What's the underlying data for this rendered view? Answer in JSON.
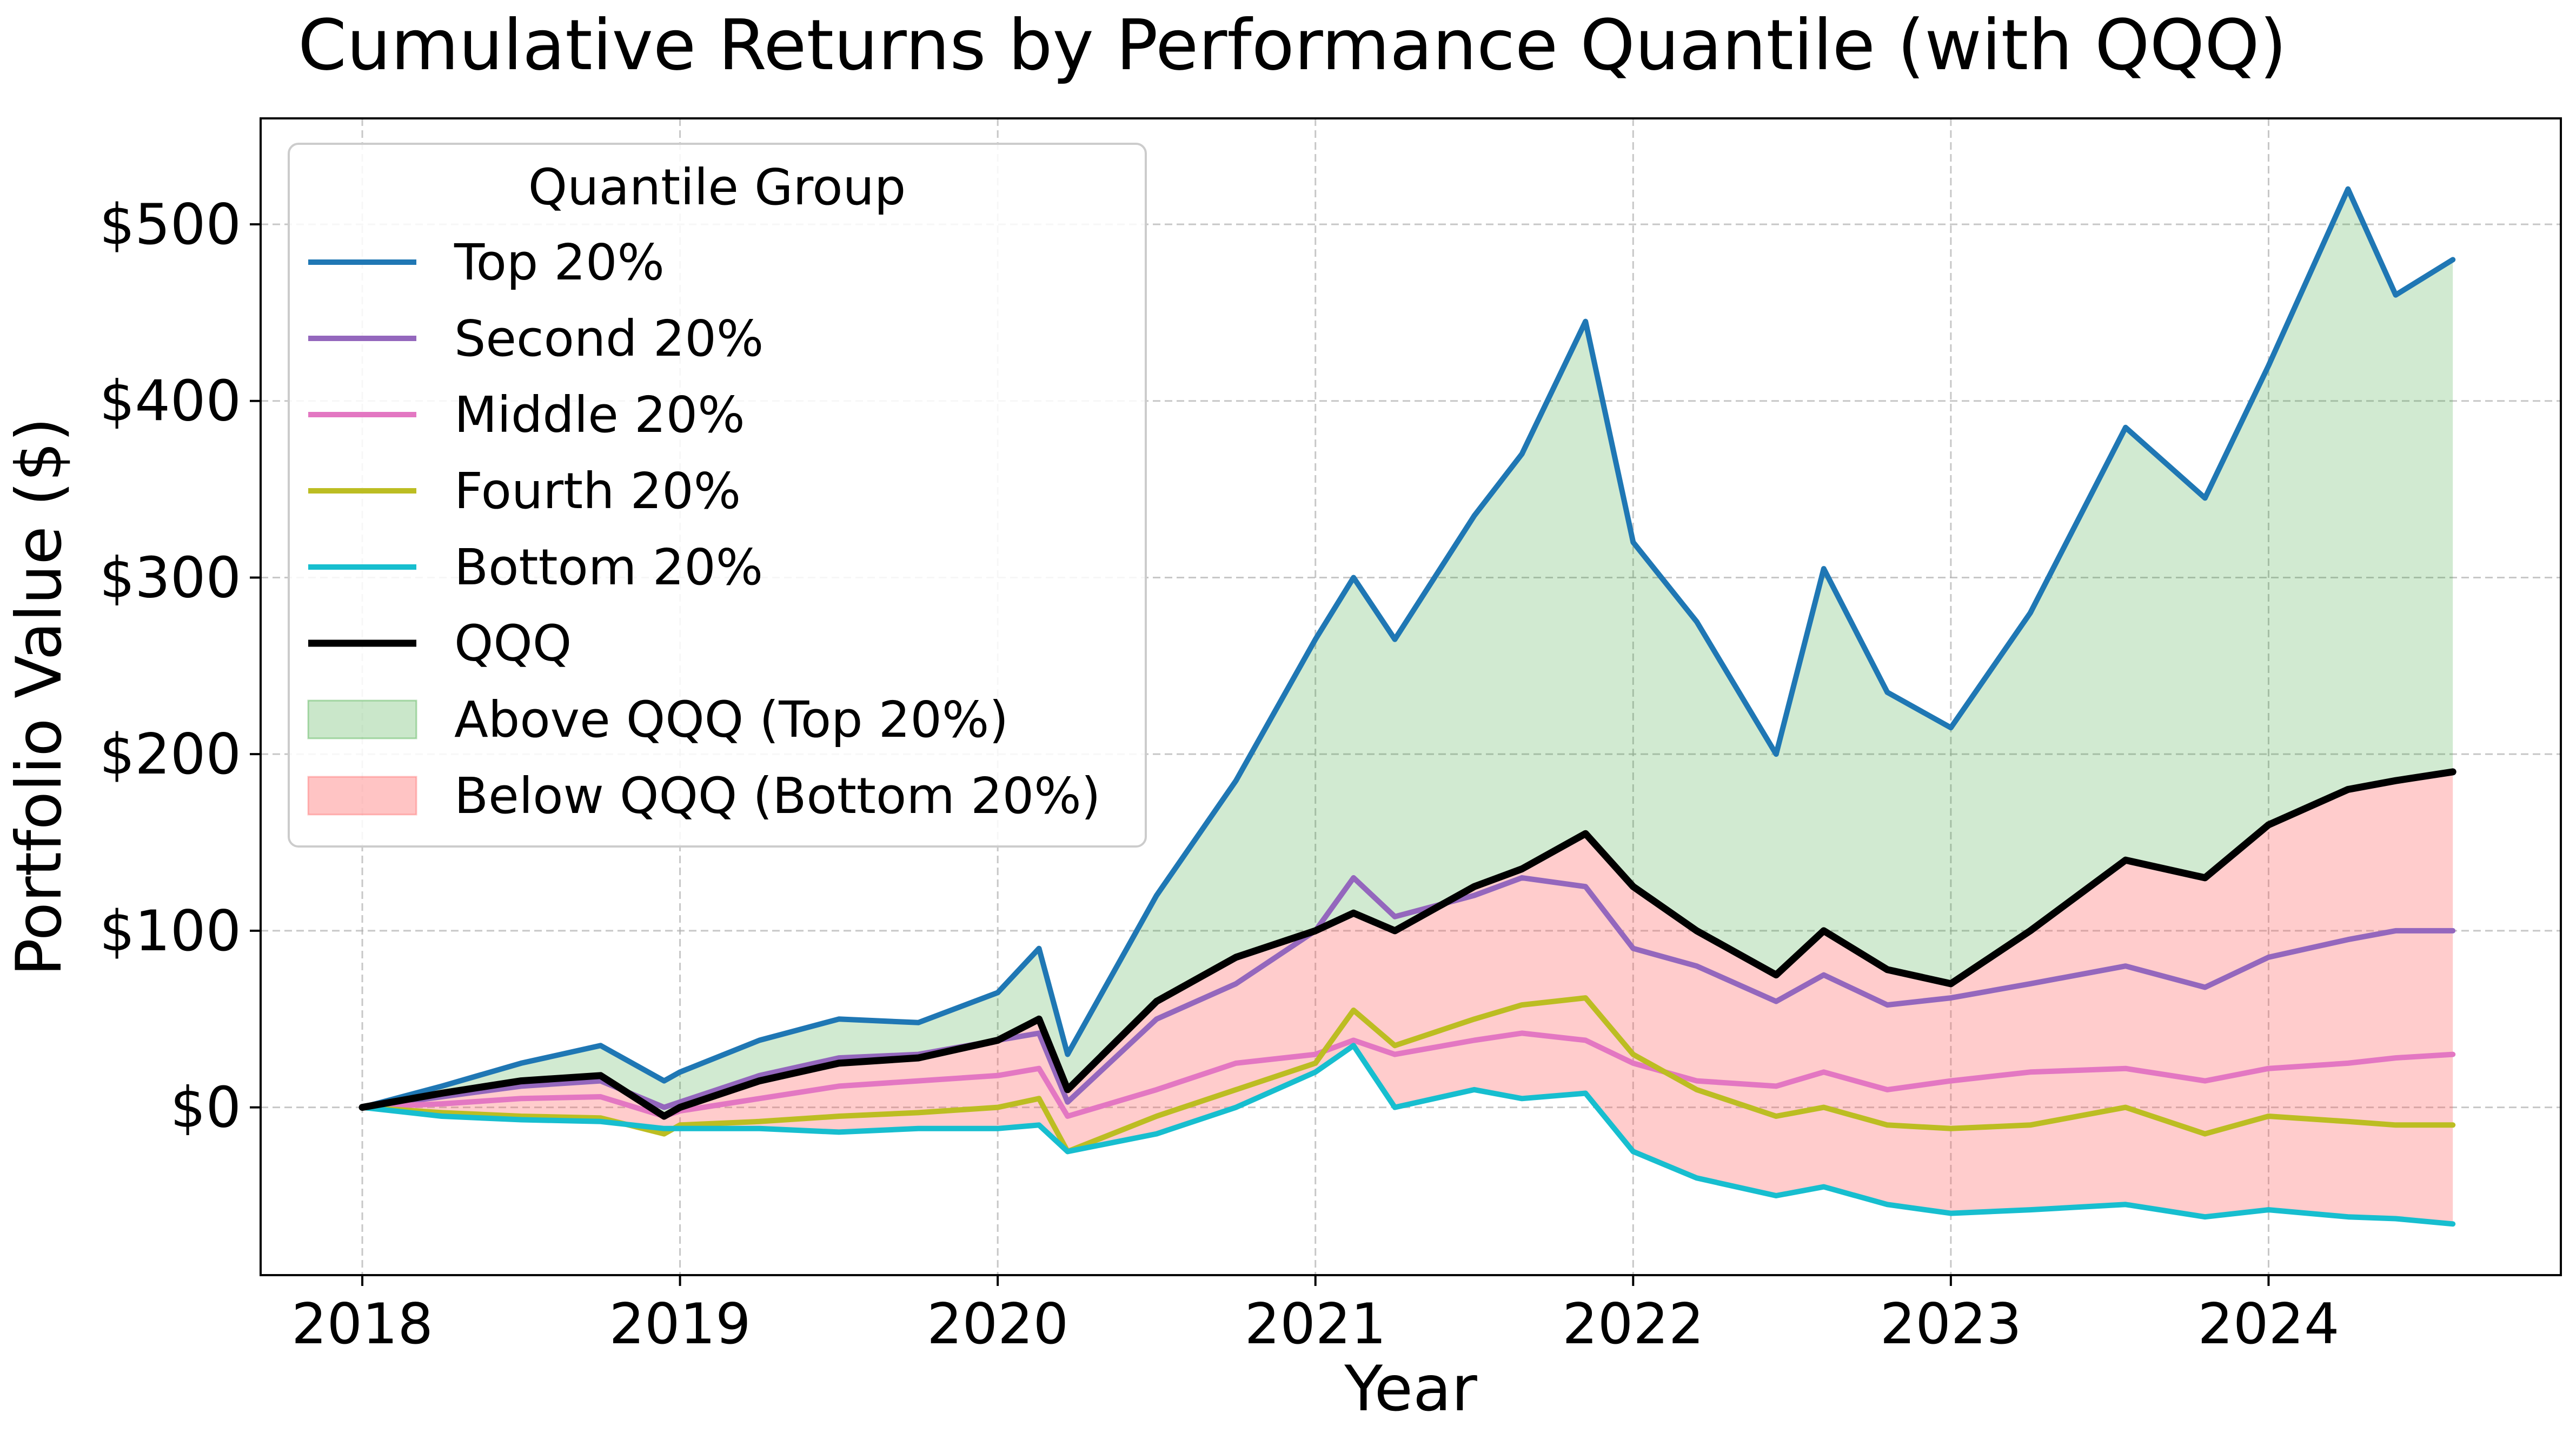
{
  "chart_data": {
    "type": "line",
    "title": "Cumulative Returns by Performance Quantile (with QQQ)",
    "xlabel": "Year",
    "ylabel": "Portfolio Value ($)",
    "xlim": [
      2017.68,
      2024.92
    ],
    "ylim": [
      -95,
      560
    ],
    "x_ticks": [
      2018,
      2019,
      2020,
      2021,
      2022,
      2023,
      2024
    ],
    "x_tick_labels": [
      "2018",
      "2019",
      "2020",
      "2021",
      "2022",
      "2023",
      "2024"
    ],
    "y_ticks": [
      0,
      100,
      200,
      300,
      400,
      500
    ],
    "y_tick_labels": [
      "$0",
      "$100",
      "$200",
      "$300",
      "$400",
      "$500"
    ],
    "grid": true,
    "legend": {
      "title": "Quantile Group",
      "position": "top-left",
      "entries": [
        {
          "label": "Top 20%",
          "kind": "line",
          "color": "#1f77b4"
        },
        {
          "label": "Second 20%",
          "kind": "line",
          "color": "#9467bd"
        },
        {
          "label": "Middle 20%",
          "kind": "line",
          "color": "#e377c2"
        },
        {
          "label": "Fourth 20%",
          "kind": "line",
          "color": "#bcbd22"
        },
        {
          "label": "Bottom 20%",
          "kind": "line",
          "color": "#17becf"
        },
        {
          "label": "QQQ",
          "kind": "line",
          "color": "#000000"
        },
        {
          "label": "Above QQQ (Top 20%)",
          "kind": "patch",
          "color": "#2ca02c"
        },
        {
          "label": "Below QQQ (Bottom 20%)",
          "kind": "patch",
          "color": "#ff5555"
        }
      ]
    },
    "fills": [
      {
        "label": "Above QQQ (Top 20%)",
        "between": [
          "Top 20%",
          "QQQ"
        ],
        "color": "#2ca02c",
        "opacity": 0.22
      },
      {
        "label": "Below QQQ (Bottom 20%)",
        "between": [
          "QQQ",
          "Bottom 20%"
        ],
        "color": "#ff5555",
        "opacity": 0.3
      }
    ],
    "x": [
      2018.0,
      2018.25,
      2018.5,
      2018.75,
      2018.95,
      2019.0,
      2019.25,
      2019.5,
      2019.75,
      2020.0,
      2020.13,
      2020.22,
      2020.5,
      2020.75,
      2021.0,
      2021.12,
      2021.25,
      2021.5,
      2021.65,
      2021.85,
      2022.0,
      2022.2,
      2022.45,
      2022.6,
      2022.8,
      2023.0,
      2023.25,
      2023.55,
      2023.8,
      2024.0,
      2024.25,
      2024.4,
      2024.58
    ],
    "series": [
      {
        "name": "Top 20%",
        "color": "#1f77b4",
        "values": [
          0,
          12,
          25,
          35,
          15,
          20,
          38,
          50,
          48,
          65,
          90,
          30,
          120,
          185,
          265,
          300,
          265,
          335,
          370,
          445,
          320,
          275,
          200,
          305,
          235,
          215,
          280,
          385,
          345,
          420,
          520,
          460,
          480
        ]
      },
      {
        "name": "Second 20%",
        "color": "#9467bd",
        "values": [
          0,
          6,
          12,
          15,
          0,
          3,
          18,
          28,
          30,
          38,
          42,
          3,
          50,
          70,
          100,
          130,
          108,
          120,
          130,
          125,
          90,
          80,
          60,
          75,
          58,
          62,
          70,
          80,
          68,
          85,
          95,
          100,
          100
        ]
      },
      {
        "name": "Middle 20%",
        "color": "#e377c2",
        "values": [
          0,
          2,
          5,
          6,
          -5,
          -2,
          5,
          12,
          15,
          18,
          22,
          -5,
          10,
          25,
          30,
          38,
          30,
          38,
          42,
          38,
          25,
          15,
          12,
          20,
          10,
          15,
          20,
          22,
          15,
          22,
          25,
          28,
          30
        ]
      },
      {
        "name": "Fourth 20%",
        "color": "#bcbd22",
        "values": [
          0,
          -3,
          -5,
          -6,
          -15,
          -10,
          -8,
          -5,
          -3,
          0,
          5,
          -25,
          -5,
          10,
          25,
          55,
          35,
          50,
          58,
          62,
          30,
          10,
          -5,
          0,
          -10,
          -12,
          -10,
          0,
          -15,
          -5,
          -8,
          -10,
          -10
        ]
      },
      {
        "name": "Bottom 20%",
        "color": "#17becf",
        "values": [
          0,
          -5,
          -7,
          -8,
          -12,
          -12,
          -12,
          -14,
          -12,
          -12,
          -10,
          -25,
          -15,
          0,
          20,
          35,
          0,
          10,
          5,
          8,
          -25,
          -40,
          -50,
          -45,
          -55,
          -60,
          -58,
          -55,
          -62,
          -58,
          -62,
          -63,
          -66
        ]
      },
      {
        "name": "QQQ",
        "color": "#000000",
        "values": [
          0,
          8,
          15,
          18,
          -5,
          0,
          15,
          25,
          28,
          38,
          50,
          10,
          60,
          85,
          100,
          110,
          100,
          125,
          135,
          155,
          125,
          100,
          75,
          100,
          78,
          70,
          100,
          140,
          130,
          160,
          180,
          185,
          190
        ]
      }
    ]
  }
}
